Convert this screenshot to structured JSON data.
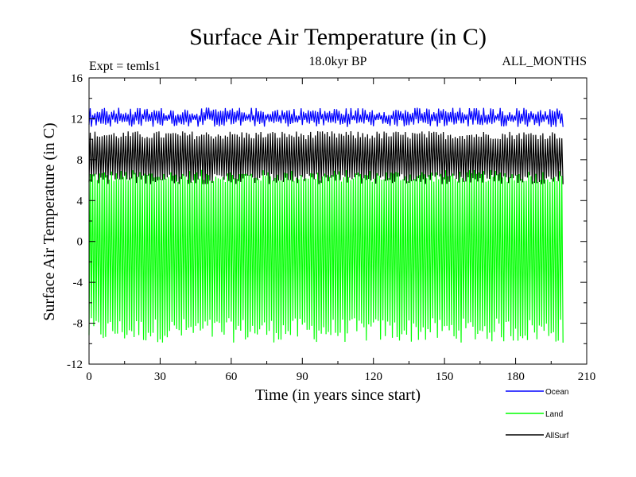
{
  "chart_data": {
    "type": "line",
    "title": "Surface Air Temperature (in C)",
    "subtitle": "18.0kyr BP",
    "experiment_label": "Expt = temls1",
    "months_label": "ALL_MONTHS",
    "xlabel": "Time (in years since start)",
    "ylabel": "Surface Air Temperature (in C)",
    "xlim": [
      0,
      210
    ],
    "ylim": [
      -12,
      16
    ],
    "xticks": [
      0,
      30,
      60,
      90,
      120,
      150,
      180,
      210
    ],
    "yticks": [
      16,
      12,
      8,
      4,
      0,
      -4,
      -8,
      -12
    ],
    "data_x_range": [
      0,
      200
    ],
    "grid": false,
    "legend_position": "bottom-right",
    "series": [
      {
        "name": "Ocean",
        "color": "#0000ff",
        "annual_min_range": [
          11.2,
          12.0
        ],
        "annual_max_range": [
          12.3,
          13.1
        ]
      },
      {
        "name": "Land",
        "color": "#00ff00",
        "annual_min_range": [
          -9.9,
          -7.5
        ],
        "annual_max_range": [
          5.8,
          7.0
        ]
      },
      {
        "name": "AllSurf",
        "color": "#000000",
        "annual_min_range": [
          5.6,
          6.6
        ],
        "annual_max_range": [
          10.0,
          10.8
        ]
      }
    ]
  }
}
